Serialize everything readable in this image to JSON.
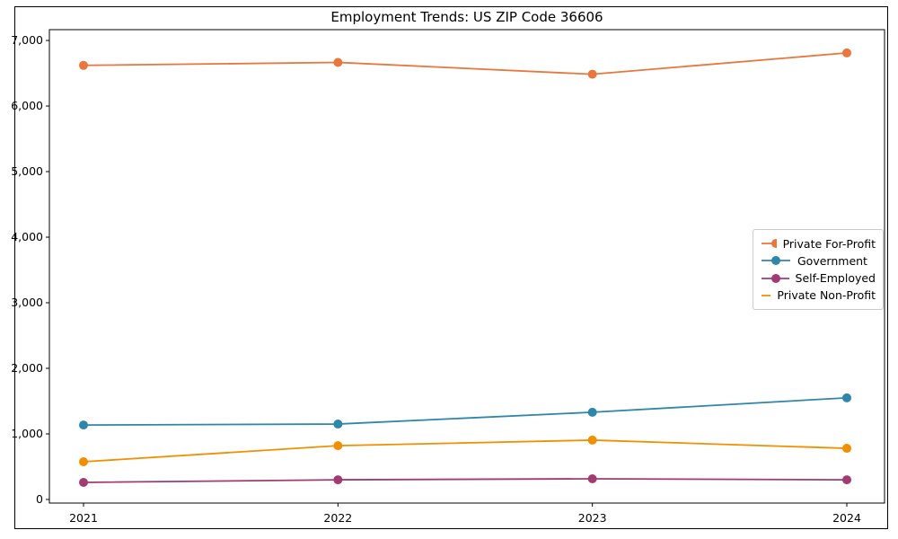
{
  "figure": {
    "background": "#ffffff",
    "border_color": "#000000"
  },
  "chart_data": {
    "type": "line",
    "title": "Employment Trends: US ZIP Code 36606",
    "xlabel": "",
    "ylabel": "",
    "grid": false,
    "x": [
      2021,
      2022,
      2023,
      2024
    ],
    "x_tick_labels": [
      "2021",
      "2022",
      "2023",
      "2024"
    ],
    "y_ticks": [
      {
        "value": 0,
        "label": "0"
      },
      {
        "value": 1000,
        "label": "1,000"
      },
      {
        "value": 2000,
        "label": "2,000"
      },
      {
        "value": 3000,
        "label": "3,000"
      },
      {
        "value": 4000,
        "label": "4,000"
      },
      {
        "value": 5000,
        "label": "5,000"
      },
      {
        "value": 6000,
        "label": "6,000"
      },
      {
        "value": 7000,
        "label": "7,000"
      }
    ],
    "ylim": [
      -55,
      7165
    ],
    "series": [
      {
        "name": "Private For-Profit",
        "color": "#E8763D",
        "values": [
          6620,
          6665,
          6485,
          6810
        ]
      },
      {
        "name": "Government",
        "color": "#2E86AB",
        "values": [
          1135,
          1150,
          1330,
          1550
        ]
      },
      {
        "name": "Self-Employed",
        "color": "#A23B72",
        "values": [
          260,
          300,
          315,
          300
        ]
      },
      {
        "name": "Private Non-Profit",
        "color": "#F18F01",
        "values": [
          575,
          820,
          905,
          780
        ]
      }
    ],
    "legend": {
      "position": "center-right"
    }
  }
}
